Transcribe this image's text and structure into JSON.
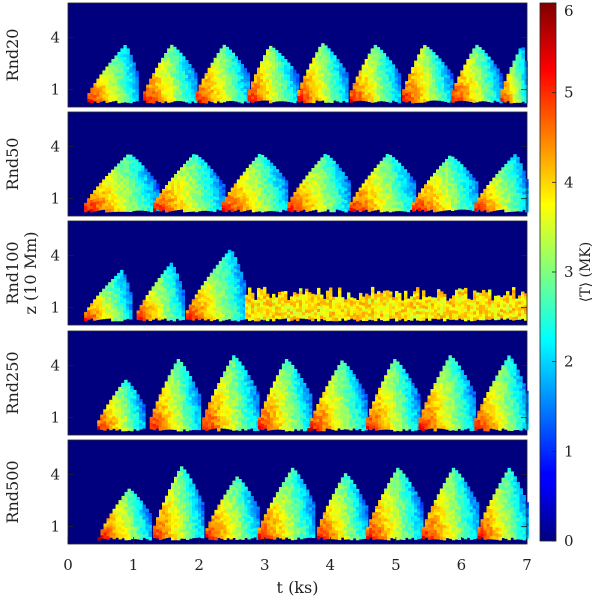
{
  "chart_data": {
    "type": "heatmap",
    "xlabel": "t (ks)",
    "ylabel": "z (10 Mm)",
    "xlim": [
      0,
      7
    ],
    "x_ticks": [
      "0",
      "1",
      "2",
      "3",
      "4",
      "5",
      "6",
      "7"
    ],
    "y_ticks": [
      "1",
      "4"
    ],
    "ylim": [
      0,
      6
    ],
    "colorbar": {
      "label": "⟨T⟩ (MK)",
      "range": [
        0,
        6
      ],
      "ticks": [
        "0",
        "1",
        "2",
        "3",
        "4",
        "5",
        "6"
      ],
      "colormap": "jet"
    },
    "background_color": "#00007f",
    "panels": [
      {
        "label": "Rnd20",
        "events": [
          {
            "t_start": 0.25,
            "t_peak": 0.85,
            "t_end": 1.05,
            "z_peak": 3.6
          },
          {
            "t_start": 1.1,
            "t_peak": 1.55,
            "t_end": 1.95,
            "z_peak": 3.6
          },
          {
            "t_start": 1.9,
            "t_peak": 2.35,
            "t_end": 2.75,
            "z_peak": 3.6
          },
          {
            "t_start": 2.7,
            "t_peak": 3.05,
            "t_end": 3.5,
            "z_peak": 3.55
          },
          {
            "t_start": 3.45,
            "t_peak": 3.85,
            "t_end": 4.25,
            "z_peak": 3.7
          },
          {
            "t_start": 4.25,
            "t_peak": 4.65,
            "t_end": 5.05,
            "z_peak": 3.6
          },
          {
            "t_start": 5.05,
            "t_peak": 5.4,
            "t_end": 5.85,
            "z_peak": 3.6
          },
          {
            "t_start": 5.8,
            "t_peak": 6.2,
            "t_end": 6.6,
            "z_peak": 3.6
          },
          {
            "t_start": 6.55,
            "t_peak": 6.9,
            "t_end": 7.0,
            "z_peak": 3.6
          }
        ],
        "turbulent": []
      },
      {
        "label": "Rnd50",
        "events": [
          {
            "t_start": 0.2,
            "t_peak": 0.9,
            "t_end": 1.35,
            "z_peak": 3.6
          },
          {
            "t_start": 1.25,
            "t_peak": 1.9,
            "t_end": 2.35,
            "z_peak": 3.6
          },
          {
            "t_start": 2.3,
            "t_peak": 2.9,
            "t_end": 3.35,
            "z_peak": 3.6
          },
          {
            "t_start": 3.3,
            "t_peak": 3.9,
            "t_end": 4.3,
            "z_peak": 3.6
          },
          {
            "t_start": 4.25,
            "t_peak": 4.85,
            "t_end": 5.3,
            "z_peak": 3.6
          },
          {
            "t_start": 5.2,
            "t_peak": 5.8,
            "t_end": 6.25,
            "z_peak": 3.5
          },
          {
            "t_start": 6.15,
            "t_peak": 6.8,
            "t_end": 7.0,
            "z_peak": 3.6
          }
        ],
        "turbulent": []
      },
      {
        "label": "Rnd100",
        "events": [
          {
            "t_start": 0.2,
            "t_peak": 0.8,
            "t_end": 0.95,
            "z_peak": 3.2
          },
          {
            "t_start": 1.0,
            "t_peak": 1.55,
            "t_end": 1.75,
            "z_peak": 3.6
          },
          {
            "t_start": 1.75,
            "t_peak": 2.45,
            "t_end": 2.7,
            "z_peak": 4.4
          }
        ],
        "turbulent": [
          {
            "t_start": 2.7,
            "t_end": 7.0,
            "z_top": 2.2,
            "t_mean": 3.9
          }
        ]
      },
      {
        "label": "Rnd250",
        "events": [
          {
            "t_start": 0.4,
            "t_peak": 0.85,
            "t_end": 1.15,
            "z_peak": 3.2
          },
          {
            "t_start": 1.2,
            "t_peak": 1.65,
            "t_end": 2.0,
            "z_peak": 4.4
          },
          {
            "t_start": 2.0,
            "t_peak": 2.5,
            "t_end": 2.9,
            "z_peak": 4.6
          },
          {
            "t_start": 2.85,
            "t_peak": 3.3,
            "t_end": 3.7,
            "z_peak": 4.4
          },
          {
            "t_start": 3.65,
            "t_peak": 4.15,
            "t_end": 4.55,
            "z_peak": 4.3
          },
          {
            "t_start": 4.5,
            "t_peak": 4.95,
            "t_end": 5.35,
            "z_peak": 4.4
          },
          {
            "t_start": 5.3,
            "t_peak": 5.8,
            "t_end": 6.2,
            "z_peak": 4.6
          },
          {
            "t_start": 6.15,
            "t_peak": 6.7,
            "t_end": 7.0,
            "z_peak": 4.6
          }
        ],
        "turbulent": []
      },
      {
        "label": "Rnd500",
        "events": [
          {
            "t_start": 0.45,
            "t_peak": 0.9,
            "t_end": 1.25,
            "z_peak": 3.2
          },
          {
            "t_start": 1.25,
            "t_peak": 1.7,
            "t_end": 2.05,
            "z_peak": 4.5
          },
          {
            "t_start": 2.05,
            "t_peak": 2.55,
            "t_end": 2.9,
            "z_peak": 3.9
          },
          {
            "t_start": 2.85,
            "t_peak": 3.4,
            "t_end": 3.75,
            "z_peak": 4.4
          },
          {
            "t_start": 3.75,
            "t_peak": 4.2,
            "t_end": 4.55,
            "z_peak": 4.1
          },
          {
            "t_start": 4.5,
            "t_peak": 5.0,
            "t_end": 5.4,
            "z_peak": 4.4
          },
          {
            "t_start": 5.35,
            "t_peak": 5.85,
            "t_end": 6.25,
            "z_peak": 4.4
          },
          {
            "t_start": 6.2,
            "t_peak": 6.7,
            "t_end": 7.0,
            "z_peak": 4.4
          }
        ],
        "turbulent": []
      }
    ]
  }
}
